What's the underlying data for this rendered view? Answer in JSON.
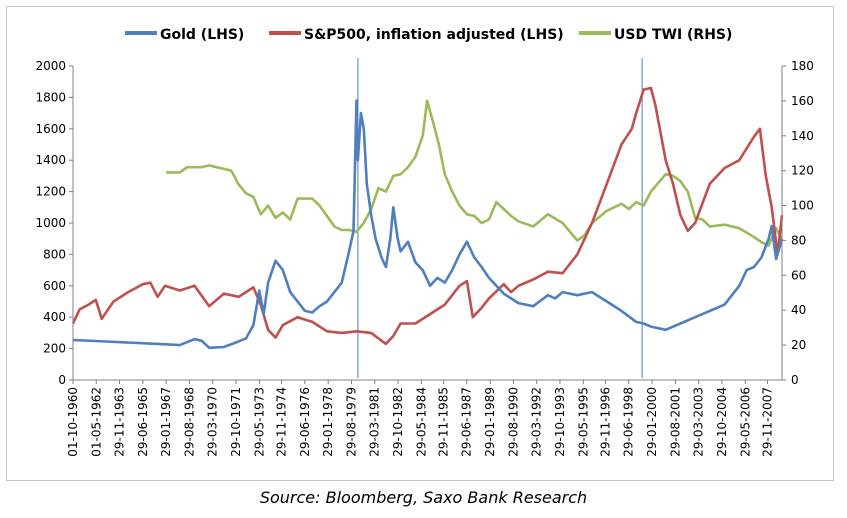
{
  "source_text": "Source: Bloomberg, Saxo Bank Research",
  "chart_data": {
    "type": "line",
    "legend": {
      "placement": "top",
      "entries": [
        {
          "label": "Gold (LHS)",
          "color": "#4f7fbf"
        },
        {
          "label": "S&P500, inflation adjusted (LHS)",
          "color": "#c0504d"
        },
        {
          "label": "USD TWI (RHS)",
          "color": "#9bbb59"
        }
      ]
    },
    "y_left": {
      "min": 0,
      "max": 2000,
      "ticks": [
        "0",
        "200",
        "400",
        "600",
        "800",
        "1000",
        "1200",
        "1400",
        "1600",
        "1800",
        "2000"
      ]
    },
    "y_right": {
      "min": 0,
      "max": 180,
      "ticks": [
        "0",
        "20",
        "40",
        "60",
        "80",
        "100",
        "120",
        "140",
        "160",
        "180"
      ]
    },
    "x_range": [
      1960.75,
      2008.9
    ],
    "x_ticks": [
      {
        "label": "01-10-1960",
        "x": 1960.75
      },
      {
        "label": "01-05-1962",
        "x": 1962.33
      },
      {
        "label": "29-11-1963",
        "x": 1963.91
      },
      {
        "label": "29-06-1965",
        "x": 1965.49
      },
      {
        "label": "29-01-1967",
        "x": 1967.08
      },
      {
        "label": "29-08-1968",
        "x": 1968.66
      },
      {
        "label": "29-03-1970",
        "x": 1970.24
      },
      {
        "label": "29-10-1971",
        "x": 1971.82
      },
      {
        "label": "29-05-1973",
        "x": 1973.41
      },
      {
        "label": "29-11-1974",
        "x": 1974.91
      },
      {
        "label": "29-06-1976",
        "x": 1976.49
      },
      {
        "label": "29-01-1978",
        "x": 1978.08
      },
      {
        "label": "29-08-1979",
        "x": 1979.66
      },
      {
        "label": "29-03-1981",
        "x": 1981.24
      },
      {
        "label": "29-10-1982",
        "x": 1982.82
      },
      {
        "label": "29-05-1984",
        "x": 1984.41
      },
      {
        "label": "29-11-1985",
        "x": 1985.91
      },
      {
        "label": "29-06-1987",
        "x": 1987.49
      },
      {
        "label": "29-01-1989",
        "x": 1989.08
      },
      {
        "label": "29-08-1990",
        "x": 1990.66
      },
      {
        "label": "29-03-1992",
        "x": 1992.24
      },
      {
        "label": "29-10-1993",
        "x": 1993.82
      },
      {
        "label": "29-05-1995",
        "x": 1995.41
      },
      {
        "label": "29-11-1996",
        "x": 1996.91
      },
      {
        "label": "29-06-1998",
        "x": 1998.49
      },
      {
        "label": "29-01-2000",
        "x": 2000.08
      },
      {
        "label": "29-08-2001",
        "x": 2001.66
      },
      {
        "label": "29-03-2003",
        "x": 2003.24
      },
      {
        "label": "29-10-2004",
        "x": 2004.82
      },
      {
        "label": "29-05-2006",
        "x": 2006.41
      },
      {
        "label": "29-11-2007",
        "x": 2007.91
      }
    ],
    "vertical_markers": [
      1980.1,
      1999.4
    ],
    "grid": false,
    "series": [
      {
        "name": "Gold (LHS)",
        "axis": "left",
        "color": "#4f7fbf",
        "x": [
          1960.75,
          1963,
          1966,
          1968,
          1969,
          1969.5,
          1970,
          1971,
          1971.7,
          1972.5,
          1973,
          1973.4,
          1973.7,
          1974,
          1974.5,
          1975,
          1975.5,
          1976,
          1976.5,
          1977,
          1977.5,
          1978,
          1978.5,
          1979,
          1979.5,
          1979.8,
          1980,
          1980.1,
          1980.3,
          1980.5,
          1980.7,
          1981,
          1981.3,
          1981.7,
          1982,
          1982.3,
          1982.5,
          1982.8,
          1983,
          1983.5,
          1984,
          1984.5,
          1985,
          1985.5,
          1986,
          1986.5,
          1987,
          1987.5,
          1988,
          1988.5,
          1989,
          1990,
          1990.5,
          1991,
          1992,
          1993,
          1993.5,
          1994,
          1995,
          1996,
          1997,
          1998,
          1999,
          1999.5,
          2000,
          2001,
          2002,
          2003,
          2004,
          2005,
          2006,
          2006.5,
          2007,
          2007.5,
          2008,
          2008.2,
          2008.5,
          2008.9
        ],
        "y": [
          255,
          245,
          232,
          222,
          260,
          250,
          205,
          210,
          235,
          265,
          350,
          570,
          420,
          620,
          760,
          700,
          560,
          500,
          440,
          430,
          470,
          500,
          560,
          620,
          820,
          950,
          1780,
          1400,
          1700,
          1600,
          1250,
          1050,
          900,
          780,
          720,
          900,
          1100,
          900,
          820,
          880,
          750,
          700,
          600,
          650,
          620,
          700,
          800,
          880,
          780,
          720,
          650,
          550,
          520,
          490,
          470,
          540,
          520,
          560,
          540,
          560,
          500,
          440,
          370,
          360,
          340,
          320,
          360,
          400,
          440,
          480,
          600,
          700,
          720,
          780,
          900,
          980,
          770,
          900
        ]
      },
      {
        "name": "S&P500, inflation adjusted (LHS)",
        "axis": "left",
        "color": "#c0504d",
        "x": [
          1960.75,
          1961.2,
          1961.8,
          1962.3,
          1962.7,
          1963.5,
          1964.5,
          1965.5,
          1966,
          1966.5,
          1967,
          1968,
          1969,
          1970,
          1971,
          1972,
          1973,
          1973.5,
          1974,
          1974.5,
          1975,
          1976,
          1977,
          1978,
          1979,
          1980,
          1981,
          1982,
          1982.5,
          1983,
          1984,
          1985,
          1986,
          1987,
          1987.5,
          1987.9,
          1988.5,
          1989,
          1990,
          1990.5,
          1991,
          1992,
          1993,
          1994,
          1995,
          1996,
          1997,
          1998,
          1998.7,
          1999,
          1999.5,
          2000,
          2000.3,
          2000.7,
          2001,
          2001.5,
          2002,
          2002.5,
          2003,
          2004,
          2005,
          2006,
          2007,
          2007.4,
          2007.8,
          2008.2,
          2008.6,
          2008.9
        ],
        "y": [
          360,
          450,
          480,
          510,
          390,
          500,
          560,
          610,
          620,
          530,
          600,
          570,
          600,
          470,
          550,
          530,
          590,
          480,
          320,
          270,
          350,
          400,
          370,
          310,
          300,
          310,
          300,
          230,
          280,
          360,
          360,
          420,
          480,
          600,
          630,
          400,
          460,
          520,
          610,
          560,
          600,
          640,
          690,
          680,
          800,
          1000,
          1250,
          1500,
          1600,
          1700,
          1850,
          1860,
          1750,
          1550,
          1400,
          1250,
          1050,
          950,
          1000,
          1250,
          1350,
          1400,
          1550,
          1600,
          1300,
          1100,
          800,
          1050
        ]
      },
      {
        "name": "USD TWI (RHS)",
        "axis": "right",
        "color": "#9bbb59",
        "x": [
          1967.08,
          1968,
          1968.5,
          1969.5,
          1970,
          1970.5,
          1971,
          1971.5,
          1972,
          1972.5,
          1973,
          1973.5,
          1974,
          1974.5,
          1975,
          1975.5,
          1976,
          1977,
          1977.5,
          1978,
          1978.5,
          1979,
          1979.5,
          1980,
          1980.5,
          1981,
          1981.5,
          1982,
          1982.5,
          1983,
          1983.5,
          1984,
          1984.5,
          1984.8,
          1985.2,
          1985.6,
          1986,
          1986.5,
          1987,
          1987.5,
          1988,
          1988.5,
          1989,
          1989.5,
          1990,
          1990.5,
          1991,
          1992,
          1993,
          1994,
          1995,
          1995.5,
          1996,
          1997,
          1998,
          1998.5,
          1999,
          1999.5,
          2000,
          2000.5,
          2001,
          2001.5,
          2002,
          2002.5,
          2003,
          2003.5,
          2004,
          2005,
          2006,
          2007,
          2007.5,
          2008,
          2008.5,
          2008.9
        ],
        "y": [
          119,
          119,
          122,
          122,
          123,
          122,
          121,
          120,
          112,
          107,
          105,
          95,
          100,
          93,
          96,
          92,
          104,
          104,
          100,
          94,
          88,
          86,
          86,
          85,
          90,
          98,
          110,
          108,
          117,
          118,
          122,
          128,
          140,
          160,
          148,
          135,
          118,
          108,
          100,
          95,
          94,
          90,
          92,
          102,
          98,
          94,
          91,
          88,
          95,
          90,
          80,
          83,
          90,
          97,
          101,
          98,
          102,
          100,
          108,
          113,
          118,
          117,
          114,
          108,
          93,
          92,
          88,
          89,
          87,
          82,
          79,
          77,
          87,
          80
        ]
      }
    ]
  }
}
